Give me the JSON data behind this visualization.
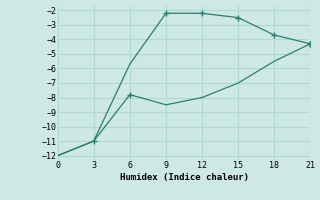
{
  "xlabel": "Humidex (Indice chaleur)",
  "bg_color": "#cde8e5",
  "grid_color": "#b0d8d4",
  "line_color": "#2e7d6e",
  "xlim": [
    0,
    21
  ],
  "ylim": [
    -12.3,
    -1.7
  ],
  "xticks": [
    0,
    3,
    6,
    9,
    12,
    15,
    18,
    21
  ],
  "yticks": [
    -12,
    -11,
    -10,
    -9,
    -8,
    -7,
    -6,
    -5,
    -4,
    -3,
    -2
  ],
  "line1_x": [
    0,
    3,
    6,
    9,
    12,
    15,
    18,
    21
  ],
  "line1_y": [
    -12.0,
    -11.0,
    -5.7,
    -2.2,
    -2.2,
    -2.5,
    -3.7,
    -4.3
  ],
  "line1_has_marker": [
    false,
    false,
    false,
    true,
    true,
    true,
    true,
    true
  ],
  "line2_x": [
    0,
    3,
    6,
    9,
    12,
    15,
    18,
    21
  ],
  "line2_y": [
    -12.0,
    -11.0,
    -7.8,
    -8.5,
    -8.0,
    -7.0,
    -5.5,
    -4.3
  ],
  "line2_has_marker": [
    false,
    true,
    true,
    false,
    false,
    false,
    false,
    true
  ]
}
